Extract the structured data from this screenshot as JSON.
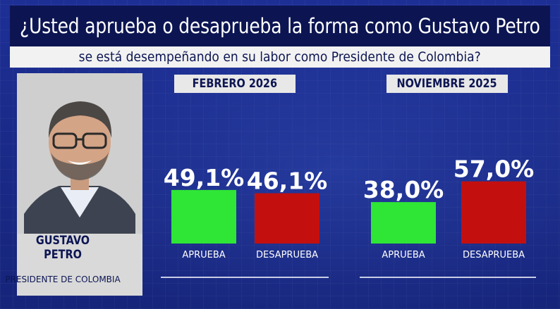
{
  "header": {
    "title": "¿Usted aprueba o desaprueba la forma como Gustavo Petro",
    "subtitle": "se está desempeñando en su labor como Presidente de Colombia?"
  },
  "person": {
    "name_line1": "GUSTAVO",
    "name_line2": "PETRO",
    "role": "PRESIDENTE DE COLOMBIA"
  },
  "colors": {
    "approve": "#2fe536",
    "disapprove": "#c3100f"
  },
  "chart_data": [
    {
      "type": "bar",
      "title": "FEBRERO 2026",
      "categories": [
        "APRUEBA",
        "DESAPRUEBA"
      ],
      "values": [
        49.1,
        46.1
      ],
      "value_labels": [
        "49,1%",
        "46,1%"
      ],
      "ylim": [
        0,
        100
      ],
      "grid": false
    },
    {
      "type": "bar",
      "title": "NOVIEMBRE 2025",
      "categories": [
        "APRUEBA",
        "DESAPRUEBA"
      ],
      "values": [
        38.0,
        57.0
      ],
      "value_labels": [
        "38,0%",
        "57,0%"
      ],
      "ylim": [
        0,
        100
      ],
      "grid": false
    }
  ]
}
